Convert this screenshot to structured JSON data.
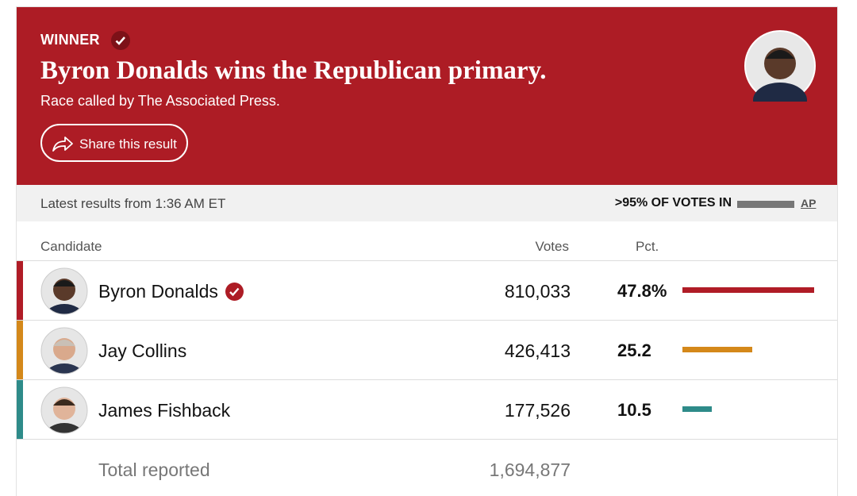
{
  "header": {
    "badge": "WINNER",
    "title": "Byron Donalds wins the Republican primary.",
    "subtitle": "Race called by The Associated Press.",
    "share_button": "Share this result"
  },
  "status": {
    "latest": "Latest results from 1:36 AM ET",
    "votes_in": ">95% OF VOTES IN",
    "source": "AP"
  },
  "table": {
    "columns": [
      "Candidate",
      "Votes",
      "Pct."
    ],
    "rows": [
      {
        "name": "Byron Donalds",
        "votes": "810,033",
        "pct": 47.8,
        "pct_label": "47.8%",
        "color": "#b01c26",
        "winner": true
      },
      {
        "name": "Jay Collins",
        "votes": "426,413",
        "pct": 25.2,
        "color": "#d4881a",
        "winner": false
      },
      {
        "name": "James Fishback",
        "votes": "177,526",
        "pct": 10.5,
        "color": "#2e8b89",
        "winner": false
      }
    ],
    "total": {
      "label": "Total reported",
      "votes": "1,694,877"
    }
  }
}
